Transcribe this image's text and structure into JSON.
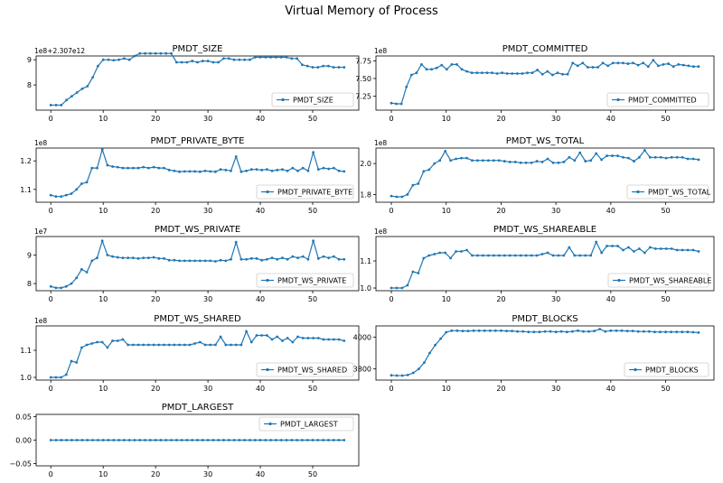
{
  "figure": {
    "title": "Virtual Memory of Process"
  },
  "colors": {
    "line": "#1f77b4",
    "axes": "#000000",
    "legend_border": "#cccccc"
  },
  "chart_data": [
    {
      "type": "line",
      "title": "PMDT_SIZE",
      "offset_label": "1e8+2.307e12",
      "legend": "PMDT_SIZE",
      "legend_position": "lower-right",
      "x_range": [
        0,
        56
      ],
      "x_ticks": [
        0,
        10,
        20,
        30,
        40,
        50
      ],
      "y_range": [
        7.0,
        9.15
      ],
      "y_ticks": [
        8,
        9
      ],
      "y_tick_labels": [
        "8",
        "9"
      ],
      "series": [
        {
          "values": [
            7.2,
            7.2,
            7.2,
            7.4,
            7.55,
            7.7,
            7.85,
            7.95,
            8.3,
            8.75,
            9.0,
            9.0,
            8.98,
            9.0,
            9.05,
            9.0,
            9.15,
            9.25,
            9.25,
            9.25,
            9.25,
            9.25,
            9.25,
            9.25,
            8.9,
            8.9,
            8.9,
            8.95,
            8.9,
            8.95,
            8.95,
            8.9,
            8.9,
            9.05,
            9.05,
            9.0,
            9.0,
            9.0,
            9.0,
            9.1,
            9.1,
            9.1,
            9.1,
            9.1,
            9.1,
            9.1,
            9.05,
            9.05,
            8.8,
            8.75,
            8.7,
            8.7,
            8.75,
            8.75,
            8.7,
            8.7,
            8.7
          ]
        }
      ]
    },
    {
      "type": "line",
      "title": "PMDT_COMMITTED",
      "offset_label": "1e8",
      "legend": "PMDT_COMMITTED",
      "legend_position": "lower-right",
      "x_range": [
        0,
        56
      ],
      "x_ticks": [
        0,
        10,
        20,
        30,
        40,
        50
      ],
      "y_range": [
        7.05,
        7.82
      ],
      "y_ticks": [
        7.25,
        7.5,
        7.75
      ],
      "y_tick_labels": [
        "7.25",
        "7.50",
        "7.75"
      ],
      "series": [
        {
          "values": [
            7.15,
            7.14,
            7.14,
            7.38,
            7.55,
            7.58,
            7.7,
            7.63,
            7.63,
            7.65,
            7.69,
            7.63,
            7.7,
            7.7,
            7.63,
            7.6,
            7.58,
            7.58,
            7.58,
            7.58,
            7.58,
            7.57,
            7.58,
            7.57,
            7.57,
            7.57,
            7.57,
            7.58,
            7.58,
            7.62,
            7.56,
            7.6,
            7.55,
            7.58,
            7.56,
            7.56,
            7.72,
            7.68,
            7.72,
            7.66,
            7.66,
            7.66,
            7.72,
            7.68,
            7.72,
            7.72,
            7.72,
            7.71,
            7.72,
            7.69,
            7.72,
            7.67,
            7.76,
            7.68,
            7.7,
            7.71,
            7.67,
            7.7,
            7.69,
            7.68,
            7.67,
            7.67
          ]
        }
      ]
    },
    {
      "type": "line",
      "title": "PMDT_PRIVATE_BYTE",
      "offset_label": "1e8",
      "legend": "PMDT_PRIVATE_BYTE",
      "legend_position": "lower-right",
      "x_range": [
        0,
        56
      ],
      "x_ticks": [
        0,
        10,
        20,
        30,
        40,
        50
      ],
      "y_range": [
        1.055,
        1.245
      ],
      "y_ticks": [
        1.1,
        1.2
      ],
      "y_tick_labels": [
        "1.1",
        "1.2"
      ],
      "series": [
        {
          "values": [
            1.08,
            1.075,
            1.075,
            1.08,
            1.085,
            1.1,
            1.12,
            1.125,
            1.175,
            1.175,
            1.24,
            1.185,
            1.18,
            1.178,
            1.175,
            1.175,
            1.175,
            1.175,
            1.178,
            1.175,
            1.178,
            1.175,
            1.175,
            1.168,
            1.165,
            1.162,
            1.163,
            1.163,
            1.163,
            1.162,
            1.165,
            1.163,
            1.162,
            1.17,
            1.168,
            1.165,
            1.215,
            1.162,
            1.165,
            1.17,
            1.17,
            1.168,
            1.17,
            1.165,
            1.168,
            1.17,
            1.165,
            1.175,
            1.165,
            1.175,
            1.165,
            1.23,
            1.17,
            1.175,
            1.172,
            1.175,
            1.165,
            1.163
          ]
        }
      ]
    },
    {
      "type": "line",
      "title": "PMDT_WS_TOTAL",
      "offset_label": "1e8",
      "legend": "PMDT_WS_TOTAL",
      "legend_position": "lower-right",
      "x_range": [
        0,
        56
      ],
      "x_ticks": [
        0,
        10,
        20,
        30,
        40,
        50
      ],
      "y_range": [
        1.75,
        2.1
      ],
      "y_ticks": [
        1.8,
        2.0
      ],
      "y_tick_labels": [
        "1.8",
        "2.0"
      ],
      "series": [
        {
          "values": [
            1.79,
            1.785,
            1.785,
            1.8,
            1.86,
            1.87,
            1.95,
            1.96,
            2.0,
            2.02,
            2.08,
            2.02,
            2.03,
            2.035,
            2.035,
            2.02,
            2.02,
            2.02,
            2.02,
            2.02,
            2.02,
            2.015,
            2.01,
            2.01,
            2.005,
            2.005,
            2.005,
            2.015,
            2.01,
            2.03,
            2.005,
            2.005,
            2.01,
            2.04,
            2.02,
            2.07,
            2.015,
            2.02,
            2.065,
            2.025,
            2.05,
            2.05,
            2.05,
            2.04,
            2.035,
            2.015,
            2.04,
            2.085,
            2.04,
            2.04,
            2.04,
            2.035,
            2.04,
            2.04,
            2.04,
            2.03,
            2.03,
            2.025
          ]
        }
      ]
    },
    {
      "type": "line",
      "title": "PMDT_WS_PRIVATE",
      "offset_label": "1e7",
      "legend": "PMDT_WS_PRIVATE",
      "legend_position": "lower-right",
      "x_range": [
        0,
        56
      ],
      "x_ticks": [
        0,
        10,
        20,
        30,
        40,
        50
      ],
      "y_range": [
        7.75,
        9.65
      ],
      "y_ticks": [
        8,
        9
      ],
      "y_tick_labels": [
        "8",
        "9"
      ],
      "series": [
        {
          "values": [
            7.9,
            7.85,
            7.85,
            7.9,
            8.0,
            8.2,
            8.5,
            8.4,
            8.8,
            8.9,
            9.5,
            9.0,
            8.95,
            8.92,
            8.9,
            8.9,
            8.9,
            8.88,
            8.9,
            8.9,
            8.92,
            8.88,
            8.88,
            8.82,
            8.82,
            8.8,
            8.8,
            8.8,
            8.8,
            8.8,
            8.8,
            8.8,
            8.78,
            8.82,
            8.8,
            8.85,
            9.45,
            8.85,
            8.85,
            8.88,
            8.88,
            8.82,
            8.85,
            8.9,
            8.85,
            8.9,
            8.85,
            8.95,
            8.9,
            8.95,
            8.85,
            9.5,
            8.88,
            8.95,
            8.9,
            8.95,
            8.85,
            8.85
          ]
        }
      ]
    },
    {
      "type": "line",
      "title": "PMDT_WS_SHAREABLE",
      "offset_label": "1e8",
      "legend": "PMDT_WS_SHAREABLE",
      "legend_position": "lower-right",
      "x_range": [
        0,
        56
      ],
      "x_ticks": [
        0,
        10,
        20,
        30,
        40,
        50
      ],
      "y_range": [
        0.99,
        1.19
      ],
      "y_ticks": [
        1.0,
        1.1
      ],
      "y_tick_labels": [
        "1.0",
        "1.1"
      ],
      "series": [
        {
          "values": [
            1.0,
            1.0,
            1.0,
            1.01,
            1.06,
            1.055,
            1.11,
            1.12,
            1.125,
            1.13,
            1.13,
            1.11,
            1.135,
            1.135,
            1.14,
            1.12,
            1.12,
            1.12,
            1.12,
            1.12,
            1.12,
            1.12,
            1.12,
            1.12,
            1.12,
            1.12,
            1.12,
            1.12,
            1.125,
            1.13,
            1.12,
            1.12,
            1.12,
            1.15,
            1.12,
            1.12,
            1.12,
            1.12,
            1.17,
            1.13,
            1.155,
            1.155,
            1.155,
            1.14,
            1.15,
            1.135,
            1.145,
            1.13,
            1.15,
            1.145,
            1.145,
            1.145,
            1.145,
            1.14,
            1.14,
            1.14,
            1.14,
            1.135
          ]
        }
      ]
    },
    {
      "type": "line",
      "title": "PMDT_WS_SHARED",
      "offset_label": "1e8",
      "legend": "PMDT_WS_SHARED",
      "legend_position": "lower-right",
      "x_range": [
        0,
        56
      ],
      "x_ticks": [
        0,
        10,
        20,
        30,
        40,
        50
      ],
      "y_range": [
        0.99,
        1.19
      ],
      "y_ticks": [
        1.0,
        1.1
      ],
      "y_tick_labels": [
        "1.0",
        "1.1"
      ],
      "series": [
        {
          "values": [
            1.0,
            1.0,
            1.0,
            1.01,
            1.06,
            1.055,
            1.11,
            1.12,
            1.125,
            1.13,
            1.13,
            1.11,
            1.135,
            1.135,
            1.14,
            1.12,
            1.12,
            1.12,
            1.12,
            1.12,
            1.12,
            1.12,
            1.12,
            1.12,
            1.12,
            1.12,
            1.12,
            1.12,
            1.125,
            1.13,
            1.12,
            1.12,
            1.12,
            1.15,
            1.12,
            1.12,
            1.12,
            1.12,
            1.17,
            1.13,
            1.155,
            1.155,
            1.155,
            1.14,
            1.15,
            1.135,
            1.145,
            1.13,
            1.15,
            1.145,
            1.145,
            1.145,
            1.145,
            1.14,
            1.14,
            1.14,
            1.14,
            1.135
          ]
        }
      ]
    },
    {
      "type": "line",
      "title": "PMDT_BLOCKS",
      "offset_label": "",
      "legend": "PMDT_BLOCKS",
      "legend_position": "lower-right",
      "x_range": [
        0,
        56
      ],
      "x_ticks": [
        0,
        10,
        20,
        30,
        40,
        50
      ],
      "y_range": [
        3730,
        4070
      ],
      "y_ticks": [
        3800,
        4000
      ],
      "y_tick_labels": [
        "3800",
        "4000"
      ],
      "series": [
        {
          "values": [
            3760,
            3758,
            3758,
            3762,
            3775,
            3800,
            3840,
            3900,
            3950,
            3990,
            4030,
            4040,
            4040,
            4038,
            4038,
            4040,
            4040,
            4040,
            4040,
            4040,
            4040,
            4038,
            4038,
            4035,
            4035,
            4032,
            4032,
            4032,
            4035,
            4035,
            4032,
            4035,
            4032,
            4035,
            4040,
            4035,
            4035,
            4038,
            4050,
            4035,
            4040,
            4040,
            4040,
            4038,
            4038,
            4035,
            4035,
            4035,
            4032,
            4032,
            4032,
            4032,
            4032,
            4032,
            4032,
            4030,
            4028
          ]
        }
      ]
    },
    {
      "type": "line",
      "title": "PMDT_LARGEST",
      "offset_label": "",
      "legend": "PMDT_LARGEST",
      "legend_position": "upper-right",
      "x_range": [
        0,
        56
      ],
      "x_ticks": [
        0,
        10,
        20,
        30,
        40,
        50
      ],
      "y_range": [
        -0.055,
        0.055
      ],
      "y_ticks": [
        -0.05,
        0.0,
        0.05
      ],
      "y_tick_labels": [
        "−0.05",
        "0.00",
        "0.05"
      ],
      "series": [
        {
          "values": [
            0,
            0,
            0,
            0,
            0,
            0,
            0,
            0,
            0,
            0,
            0,
            0,
            0,
            0,
            0,
            0,
            0,
            0,
            0,
            0,
            0,
            0,
            0,
            0,
            0,
            0,
            0,
            0,
            0,
            0,
            0,
            0,
            0,
            0,
            0,
            0,
            0,
            0,
            0,
            0,
            0,
            0,
            0,
            0,
            0,
            0,
            0,
            0,
            0,
            0,
            0,
            0,
            0,
            0,
            0,
            0,
            0
          ]
        }
      ]
    }
  ]
}
